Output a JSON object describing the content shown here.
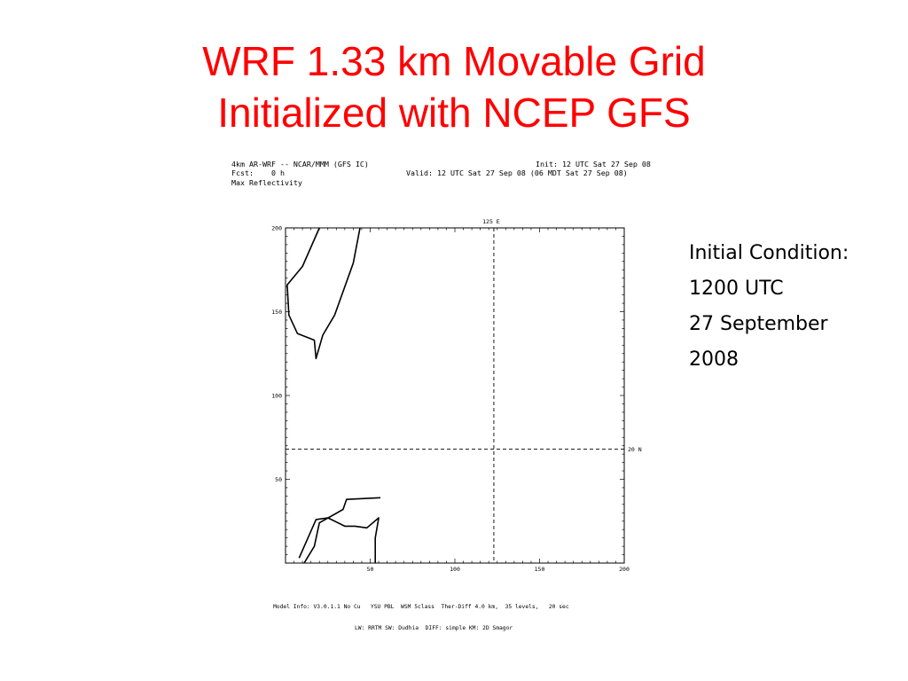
{
  "slide": {
    "title_line1": "WRF 1.33 km Movable Grid",
    "title_line2": "Initialized with NCEP GFS"
  },
  "plot_header": {
    "model": "4km AR-WRF -- NCAR/MMM (GFS IC)",
    "init": "Init: 12 UTC Sat 27 Sep 08",
    "fcst": "Fcst:    0 h",
    "valid": "Valid: 12 UTC Sat 27 Sep 08 (06 MDT Sat 27 Sep 08)",
    "field": "Max Reflectivity"
  },
  "plot": {
    "y_ticks": [
      "200",
      "150",
      "100",
      "50"
    ],
    "x_ticks": [
      "50",
      "100",
      "150",
      "200"
    ],
    "y_tick_values": [
      200,
      150,
      100,
      50
    ],
    "x_tick_values": [
      50,
      100,
      150,
      200
    ],
    "range": [
      0,
      200
    ],
    "meridian_value": 123,
    "meridian_label": "125 E",
    "parallel_value": 68,
    "parallel_label": "20 N",
    "coastlines": [
      [
        [
          11,
          0
        ],
        [
          17,
          10
        ],
        [
          20,
          24
        ],
        [
          34,
          32
        ],
        [
          36,
          38
        ],
        [
          56,
          39
        ]
      ],
      [
        [
          20,
          200
        ],
        [
          10,
          177
        ],
        [
          1,
          166
        ],
        [
          2,
          148
        ],
        [
          7,
          137
        ],
        [
          17,
          133
        ],
        [
          18,
          122
        ],
        [
          22,
          136
        ],
        [
          29,
          148
        ],
        [
          40,
          179
        ],
        [
          44,
          200
        ]
      ],
      [
        [
          53,
          0
        ],
        [
          53,
          15
        ],
        [
          55,
          27
        ],
        [
          48,
          21
        ],
        [
          41,
          22
        ],
        [
          35,
          22
        ],
        [
          25,
          27
        ],
        [
          18,
          26
        ],
        [
          8,
          3
        ]
      ]
    ]
  },
  "model_info": {
    "line1": "Model Info: V3.0.1.1 No Cu   YSU PBL  WSM 5class  Ther-Diff 4.0 km,  35 levels,   20 sec",
    "line2": "LW: RRTM SW: Dudhia  DIFF: simple KM: 2D Smagor"
  },
  "side_text": {
    "line1": "Initial Condition:",
    "line2": "1200 UTC",
    "line3": "27 September",
    "line4": "2008"
  }
}
